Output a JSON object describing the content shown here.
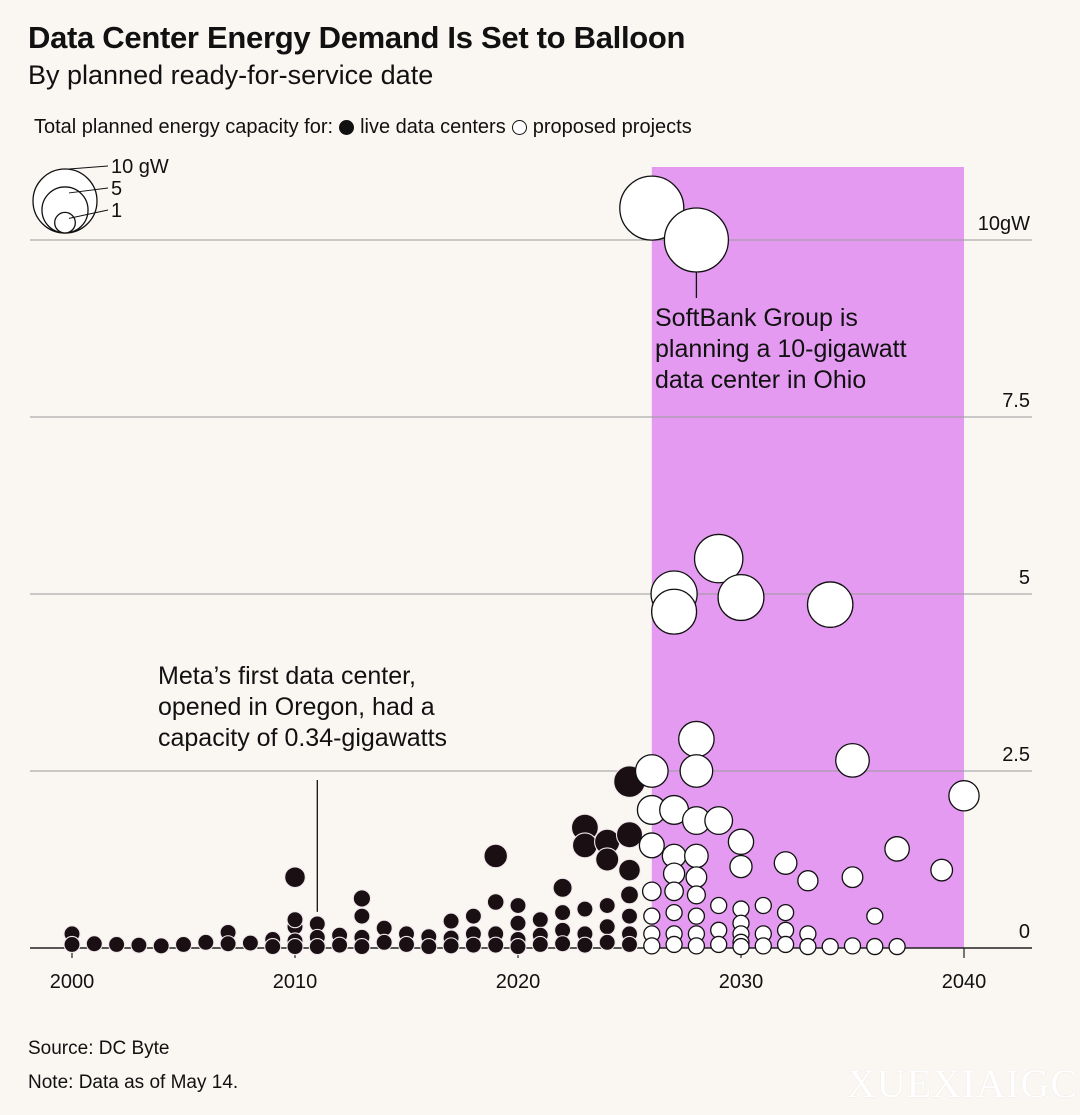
{
  "title": "Data Center Energy Demand Is Set to Balloon",
  "subtitle": "By planned ready-for-service date",
  "legend": {
    "prefix": "Total planned energy capacity for:",
    "live_label": "live data centers",
    "proposed_label": "proposed projects"
  },
  "size_legend": {
    "labels": [
      "10 gW",
      "5",
      "1"
    ],
    "values": [
      10,
      5,
      1
    ]
  },
  "annotations": {
    "softbank": [
      "SoftBank Group is",
      "planning a 10-gigawatt",
      "data center in Ohio"
    ],
    "meta": [
      "Meta’s first data center,",
      "opened in Oregon, had a",
      "capacity of 0.34-gigawatts"
    ]
  },
  "footer": {
    "source": "Source: DC Byte",
    "note": "Note: Data as of May 14."
  },
  "watermark": "XUEXIAIGC",
  "colors": {
    "background": "#faf6f2",
    "highlight": "#e39af0",
    "live": "#111111",
    "proposed": "#ffffff"
  },
  "chart_data": {
    "type": "scatter",
    "x_label": "",
    "y_label": "",
    "xlim": [
      1999,
      2043
    ],
    "ylim": [
      0,
      10
    ],
    "x_ticks": [
      2000,
      2010,
      2020,
      2030,
      2040
    ],
    "x_tick_labels": [
      "2000",
      "2010",
      "2020",
      "2030",
      "2040"
    ],
    "y_ticks": [
      0,
      2.5,
      5,
      7.5,
      10
    ],
    "y_tick_labels": [
      "0",
      "2.5",
      "5",
      "7.5",
      "10gW"
    ],
    "highlight_range": [
      2026,
      2040
    ],
    "series": [
      {
        "name": "live data centers",
        "points": [
          [
            2000,
            0.2
          ],
          [
            2000,
            0.05
          ],
          [
            2001,
            0.06
          ],
          [
            2002,
            0.05
          ],
          [
            2003,
            0.04
          ],
          [
            2004,
            0.03
          ],
          [
            2005,
            0.05
          ],
          [
            2006,
            0.08
          ],
          [
            2007,
            0.22
          ],
          [
            2007,
            0.06
          ],
          [
            2008,
            0.07
          ],
          [
            2009,
            0.12
          ],
          [
            2009,
            0.02
          ],
          [
            2010,
            0.3
          ],
          [
            2010,
            0.1
          ],
          [
            2010,
            0.02
          ],
          [
            2010,
            1.0
          ],
          [
            2010,
            0.4
          ],
          [
            2011,
            0.34
          ],
          [
            2011,
            0.15
          ],
          [
            2011,
            0.02
          ],
          [
            2012,
            0.18
          ],
          [
            2012,
            0.04
          ],
          [
            2013,
            0.7
          ],
          [
            2013,
            0.45
          ],
          [
            2013,
            0.15
          ],
          [
            2013,
            0.02
          ],
          [
            2014,
            0.28
          ],
          [
            2014,
            0.08
          ],
          [
            2015,
            0.2
          ],
          [
            2015,
            0.05
          ],
          [
            2016,
            0.16
          ],
          [
            2016,
            0.02
          ],
          [
            2017,
            0.38
          ],
          [
            2017,
            0.14
          ],
          [
            2017,
            0.03
          ],
          [
            2018,
            0.45
          ],
          [
            2018,
            0.2
          ],
          [
            2018,
            0.04
          ],
          [
            2019,
            1.3
          ],
          [
            2019,
            0.65
          ],
          [
            2019,
            0.2
          ],
          [
            2019,
            0.04
          ],
          [
            2020,
            0.6
          ],
          [
            2020,
            0.35
          ],
          [
            2020,
            0.12
          ],
          [
            2020,
            0.02
          ],
          [
            2021,
            0.4
          ],
          [
            2021,
            0.18
          ],
          [
            2021,
            0.05
          ],
          [
            2022,
            0.85
          ],
          [
            2022,
            0.5
          ],
          [
            2022,
            0.25
          ],
          [
            2022,
            0.06
          ],
          [
            2023,
            1.7
          ],
          [
            2023,
            1.45
          ],
          [
            2023,
            0.55
          ],
          [
            2023,
            0.2
          ],
          [
            2023,
            0.04
          ],
          [
            2024,
            1.5
          ],
          [
            2024,
            1.25
          ],
          [
            2024,
            0.6
          ],
          [
            2024,
            0.3
          ],
          [
            2024,
            0.08
          ],
          [
            2025,
            2.35
          ],
          [
            2025,
            1.6
          ],
          [
            2025,
            1.1
          ],
          [
            2025,
            0.75
          ],
          [
            2025,
            0.45
          ],
          [
            2025,
            0.2
          ],
          [
            2025,
            0.05
          ]
        ]
      },
      {
        "name": "proposed projects",
        "points": [
          [
            2026,
            10.45
          ],
          [
            2026,
            2.5
          ],
          [
            2026,
            1.95
          ],
          [
            2026,
            1.45
          ],
          [
            2026,
            0.8
          ],
          [
            2026,
            0.45
          ],
          [
            2026,
            0.2
          ],
          [
            2026,
            0.03
          ],
          [
            2027,
            5.0
          ],
          [
            2027,
            4.75
          ],
          [
            2027,
            1.95
          ],
          [
            2027,
            1.3
          ],
          [
            2027,
            1.05
          ],
          [
            2027,
            0.8
          ],
          [
            2027,
            0.5
          ],
          [
            2027,
            0.2
          ],
          [
            2027,
            0.05
          ],
          [
            2028,
            10.0
          ],
          [
            2028,
            2.95
          ],
          [
            2028,
            2.5
          ],
          [
            2028,
            1.8
          ],
          [
            2028,
            1.3
          ],
          [
            2028,
            1.0
          ],
          [
            2028,
            0.75
          ],
          [
            2028,
            0.45
          ],
          [
            2028,
            0.2
          ],
          [
            2028,
            0.03
          ],
          [
            2029,
            5.5
          ],
          [
            2029,
            1.8
          ],
          [
            2029,
            0.6
          ],
          [
            2029,
            0.25
          ],
          [
            2029,
            0.05
          ],
          [
            2030,
            4.95
          ],
          [
            2030,
            1.5
          ],
          [
            2030,
            1.15
          ],
          [
            2030,
            0.55
          ],
          [
            2030,
            0.35
          ],
          [
            2030,
            0.2
          ],
          [
            2030,
            0.08
          ],
          [
            2030,
            0.02
          ],
          [
            2031,
            0.6
          ],
          [
            2031,
            0.2
          ],
          [
            2031,
            0.03
          ],
          [
            2032,
            1.2
          ],
          [
            2032,
            0.5
          ],
          [
            2032,
            0.25
          ],
          [
            2032,
            0.05
          ],
          [
            2033,
            0.95
          ],
          [
            2033,
            0.2
          ],
          [
            2033,
            0.02
          ],
          [
            2034,
            4.85
          ],
          [
            2034,
            0.02
          ],
          [
            2035,
            2.65
          ],
          [
            2035,
            1.0
          ],
          [
            2035,
            0.03
          ],
          [
            2036,
            0.45
          ],
          [
            2036,
            0.02
          ],
          [
            2037,
            1.4
          ],
          [
            2037,
            0.02
          ],
          [
            2039,
            1.1
          ],
          [
            2040,
            2.15
          ]
        ]
      }
    ]
  }
}
